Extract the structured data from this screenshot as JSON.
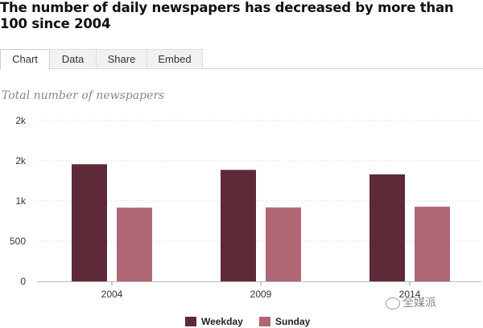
{
  "header": {
    "title": "The number of daily newspapers has decreased by more than 100 since 2004"
  },
  "tabs": [
    {
      "label": "Chart",
      "active": true
    },
    {
      "label": "Data",
      "active": false
    },
    {
      "label": "Share",
      "active": false
    },
    {
      "label": "Embed",
      "active": false
    }
  ],
  "watermark": {
    "text": "全媒派"
  },
  "colors": {
    "weekday": "#5e2a37",
    "sunday": "#b06675",
    "grid": "#cccccc",
    "axis": "#888888"
  },
  "chart_data": {
    "type": "bar",
    "title": "Total number of newspapers",
    "categories": [
      "2004",
      "2009",
      "2014"
    ],
    "series": [
      {
        "name": "Weekday",
        "values": [
          1457,
          1387,
          1331
        ]
      },
      {
        "name": "Sunday",
        "values": [
          917,
          919,
          929
        ]
      }
    ],
    "ylim": [
      0,
      2000
    ],
    "yticks": [
      0,
      500,
      1000,
      1500,
      2000
    ],
    "ytick_labels": [
      "0",
      "500",
      "1k",
      "2k",
      "2k"
    ],
    "grid": true,
    "legend": "bottom-center",
    "xlabel": "",
    "ylabel": ""
  }
}
